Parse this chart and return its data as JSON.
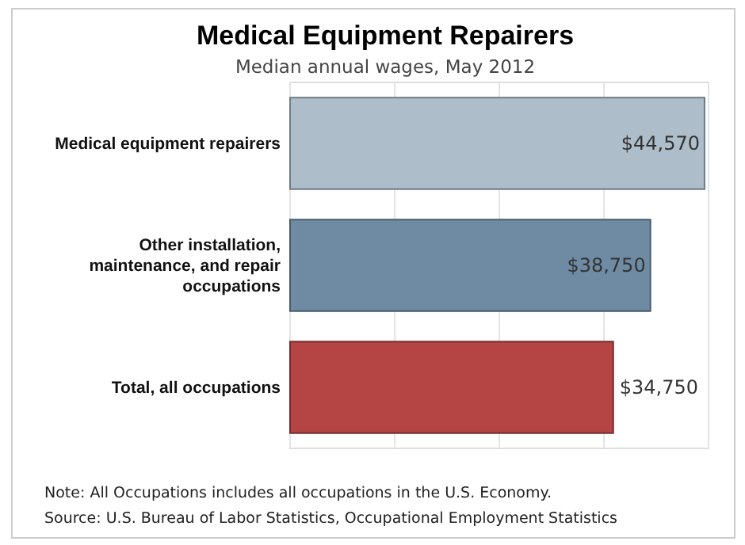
{
  "chart_data": {
    "type": "bar",
    "orientation": "horizontal",
    "title": "Medical Equipment Repairers",
    "subtitle": "Median annual wages, May 2012",
    "categories": [
      "Medical equipment repairers",
      "Other installation, maintenance, and repair occupations",
      "Total, all occupations"
    ],
    "values": [
      44570,
      38750,
      34750
    ],
    "colors": [
      "#adbdc9",
      "#6f8ba3",
      "#b54444"
    ],
    "value_labels": [
      "$44,570",
      "$38,750",
      "$34,750"
    ],
    "xlim": [
      0,
      45000
    ],
    "xticks": [
      {
        "value": 0,
        "label": null
      },
      {
        "value": 11250,
        "label": null
      },
      {
        "value": 22500,
        "label": null
      },
      {
        "value": 33750,
        "label": null
      },
      {
        "value": 45000,
        "label": null
      }
    ],
    "grid": "x",
    "annotations": [
      "Note: All Occupations includes all occupations in the U.S. Economy.",
      "Source: U.S. Bureau of Labor Statistics, Occupational Employment Statistics"
    ]
  }
}
